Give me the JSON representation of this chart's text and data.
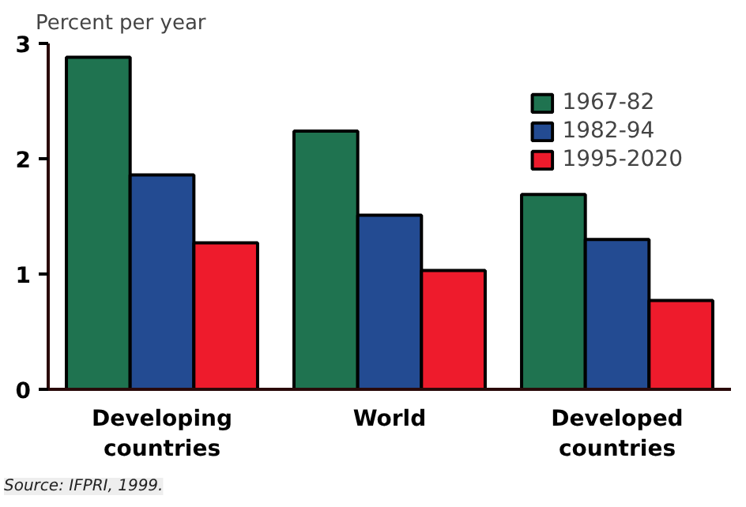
{
  "chart_data": {
    "type": "bar",
    "ylabel": "Percent per year",
    "categories": [
      "Developing countries",
      "World",
      "Developed countries"
    ],
    "series": [
      {
        "name": "1967-82",
        "color": "#1f7350",
        "values": [
          2.88,
          2.24,
          1.69
        ]
      },
      {
        "name": "1982-94",
        "color": "#234b92",
        "values": [
          1.86,
          1.51,
          1.3
        ]
      },
      {
        "name": "1995-2020",
        "color": "#ee1b2c",
        "values": [
          1.27,
          1.03,
          0.77
        ]
      }
    ],
    "ylim": [
      0,
      3
    ],
    "yticks": [
      0,
      1,
      2,
      3
    ],
    "grid": false,
    "legend": "top right",
    "annotations": [
      "Source: IFPRI, 1999."
    ]
  }
}
